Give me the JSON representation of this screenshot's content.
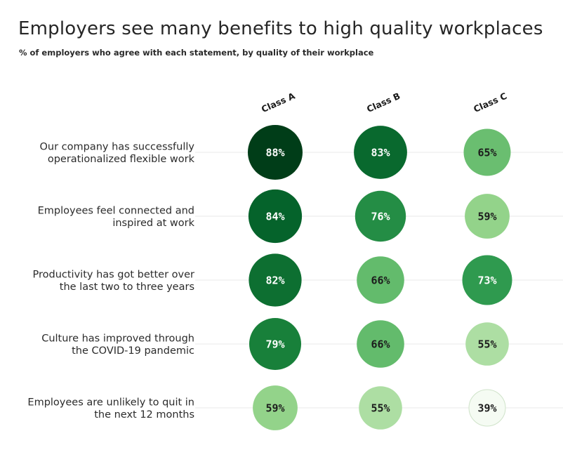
{
  "chart_data": {
    "type": "bubble-table",
    "title": "Employers see many benefits to high quality workplaces",
    "subtitle": "% of employers who agree with each statement, by quality of their workplace",
    "columns": [
      "Class A",
      "Class B",
      "Class C"
    ],
    "rows": [
      {
        "label_lines": [
          "Our company has successfully",
          "operationalized flexible work"
        ],
        "values": [
          88,
          83,
          65
        ]
      },
      {
        "label_lines": [
          "Employees feel connected and",
          "inspired at work"
        ],
        "values": [
          84,
          76,
          59
        ]
      },
      {
        "label_lines": [
          "Productivity has got better over",
          "the last two to three years"
        ],
        "values": [
          82,
          66,
          73
        ]
      },
      {
        "label_lines": [
          "Culture has improved through",
          "the COVID-19 pandemic"
        ],
        "values": [
          79,
          66,
          55
        ]
      },
      {
        "label_lines": [
          "Employees are unlikely to quit in",
          "the next 12 months"
        ],
        "values": [
          59,
          55,
          39
        ]
      }
    ],
    "value_suffix": "%",
    "color_scale": [
      {
        "value": 39,
        "color": "#f5fbf3"
      },
      {
        "value": 55,
        "color": "#addea3"
      },
      {
        "value": 59,
        "color": "#93d38a"
      },
      {
        "value": 66,
        "color": "#63bb6c"
      },
      {
        "value": 73,
        "color": "#2f9a4f"
      },
      {
        "value": 79,
        "color": "#18803a"
      },
      {
        "value": 84,
        "color": "#05632b"
      },
      {
        "value": 88,
        "color": "#003d18"
      }
    ],
    "grid": true
  }
}
